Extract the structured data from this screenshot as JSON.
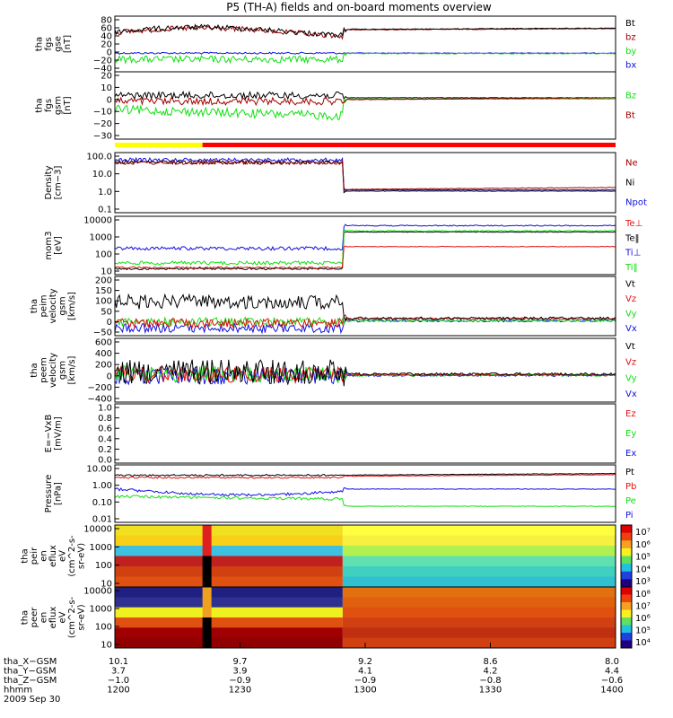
{
  "title": "P5 (TH-A) fields and on-board moments overview",
  "colors": {
    "black": "#000000",
    "red": "#e01010",
    "darkred": "#a00000",
    "green": "#10e010",
    "blue": "#1010e0",
    "yellow": "#ffff00"
  },
  "chart_data": [
    {
      "panel": "fgs_gse",
      "type": "line",
      "ylabel": [
        "tha",
        "fgs",
        "gse",
        "[nT]"
      ],
      "yticks": [
        "80",
        "60",
        "40",
        "20",
        "0",
        "−20",
        "−40"
      ],
      "ylim": [
        -40,
        85
      ],
      "legend": [
        {
          "name": "Bt",
          "color": "black"
        },
        {
          "name": "bz",
          "color": "darkred"
        },
        {
          "name": "by",
          "color": "green"
        },
        {
          "name": "bx",
          "color": "blue"
        }
      ]
    },
    {
      "panel": "fgs_gsm",
      "type": "line",
      "ylabel": [
        "tha",
        "fgs",
        "gsm",
        "[nT]"
      ],
      "yticks": [
        "20",
        "10",
        "0",
        "−10",
        "−20",
        "−30"
      ],
      "ylim": [
        -35,
        22
      ],
      "legend": [
        {
          "name": "Bz",
          "color": "green"
        },
        {
          "name": "Bt",
          "color": "darkred"
        }
      ]
    },
    {
      "panel": "density",
      "type": "line",
      "yscale": "log",
      "ylabel": [
        "Density",
        "[cm−3]"
      ],
      "yticks": [
        "100.0",
        "10.0",
        "1.0",
        "0.1"
      ],
      "legend": [
        {
          "name": "Ne",
          "color": "darkred"
        },
        {
          "name": "Ni",
          "color": "black"
        },
        {
          "name": "Npot",
          "color": "blue"
        }
      ]
    },
    {
      "panel": "temperature",
      "type": "line",
      "yscale": "log",
      "ylabel": [
        "mom3",
        "[eV]"
      ],
      "yticks": [
        "10000",
        "1000",
        "100",
        "10"
      ],
      "legend": [
        {
          "name": "Te⊥",
          "color": "red"
        },
        {
          "name": "Te‖",
          "color": "black"
        },
        {
          "name": "Ti⊥",
          "color": "blue"
        },
        {
          "name": "Ti‖",
          "color": "green"
        }
      ]
    },
    {
      "panel": "peim_velocity",
      "type": "line",
      "ylabel": [
        "tha",
        "peim",
        "velocity",
        "gsm",
        "[km/s]"
      ],
      "yticks": [
        "200",
        "150",
        "100",
        "50",
        "0",
        "−50"
      ],
      "ylim": [
        -70,
        210
      ],
      "legend": [
        {
          "name": "Vt",
          "color": "black"
        },
        {
          "name": "Vz",
          "color": "red"
        },
        {
          "name": "Vy",
          "color": "green"
        },
        {
          "name": "Vx",
          "color": "blue"
        }
      ]
    },
    {
      "panel": "peem_velocity",
      "type": "line",
      "ylabel": [
        "tha",
        "peem",
        "velocity",
        "gsm",
        "[km/s]"
      ],
      "yticks": [
        "600",
        "400",
        "200",
        "0",
        "−200",
        "−400"
      ],
      "ylim": [
        -450,
        620
      ],
      "legend": [
        {
          "name": "Vt",
          "color": "black"
        },
        {
          "name": "Vz",
          "color": "red"
        },
        {
          "name": "Vy",
          "color": "green"
        },
        {
          "name": "Vx",
          "color": "blue"
        }
      ]
    },
    {
      "panel": "efield",
      "type": "line",
      "ylabel": [
        "E=−VxB",
        "[mV/m]"
      ],
      "yticks": [
        "1.0",
        "0.8",
        "0.6",
        "0.4",
        "0.2",
        "0.0"
      ],
      "ylim": [
        0,
        1
      ],
      "legend": [
        {
          "name": "Ez",
          "color": "red"
        },
        {
          "name": "Ey",
          "color": "green"
        },
        {
          "name": "Ex",
          "color": "blue"
        }
      ]
    },
    {
      "panel": "pressure",
      "type": "line",
      "yscale": "log",
      "ylabel": [
        "Pressure",
        "[nPa]"
      ],
      "yticks": [
        "10.00",
        "1.00",
        "0.10",
        "0.01"
      ],
      "legend": [
        {
          "name": "Pt",
          "color": "black"
        },
        {
          "name": "Pb",
          "color": "red"
        },
        {
          "name": "Pe",
          "color": "green"
        },
        {
          "name": "Pi",
          "color": "blue"
        }
      ]
    },
    {
      "panel": "peir_spectrogram",
      "type": "heatmap",
      "yscale": "log",
      "ylabel": [
        "tha",
        "peir",
        "en",
        "eflux",
        "eV",
        "(cm^2-s-",
        "sr-eV)"
      ],
      "yticks": [
        "10000",
        "1000",
        "100",
        "10"
      ],
      "colorbar_ticks": [
        "10⁷",
        "10⁶",
        "10⁵",
        "10⁴",
        "10³"
      ]
    },
    {
      "panel": "peer_spectrogram",
      "type": "heatmap",
      "yscale": "log",
      "ylabel": [
        "tha",
        "peer",
        "en",
        "eflux",
        "eV",
        "(cm^2-s-",
        "sr-eV)"
      ],
      "yticks": [
        "10000",
        "1000",
        "100",
        "10"
      ],
      "colorbar_ticks": [
        "10⁸",
        "10⁷",
        "10⁶",
        "10⁵",
        "10⁴"
      ]
    }
  ],
  "ephemeris": {
    "rows": [
      {
        "label": "tha_X−GSM",
        "values": [
          "10.1",
          "9.7",
          "9.2",
          "8.6",
          "8.0"
        ]
      },
      {
        "label": "tha_Y−GSM",
        "values": [
          "3.7",
          "3.9",
          "4.1",
          "4.2",
          "4.4"
        ]
      },
      {
        "label": "tha_Z−GSM",
        "values": [
          "−1.0",
          "−0.9",
          "−0.9",
          "−0.8",
          "−0.6"
        ]
      },
      {
        "label": "hhmm",
        "values": [
          "1200",
          "1230",
          "1300",
          "1330",
          "1400"
        ]
      }
    ],
    "date": "2009 Sep 30"
  }
}
